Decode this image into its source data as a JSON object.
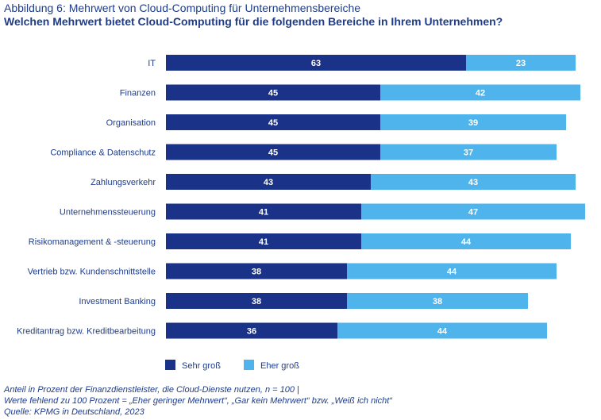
{
  "header": {
    "figure_label": "Abbildung 6: Mehrwert von Cloud-Computing für Unternehmensbereiche",
    "question": "Welchen Mehrwert bietet Cloud-Computing für die folgenden Bereiche in Ihrem Unternehmen?"
  },
  "chart_data": {
    "type": "bar",
    "orientation": "horizontal",
    "stacked": true,
    "categories": [
      "IT",
      "Finanzen",
      "Organisation",
      "Compliance & Datenschutz",
      "Zahlungsverkehr",
      "Unternehmenssteuerung",
      "Risikomanagement & -steuerung",
      "Vertrieb bzw. Kundenschnittstelle",
      "Investment Banking",
      "Kreditantrag bzw. Kreditbearbeitung"
    ],
    "series": [
      {
        "name": "Sehr groß",
        "color": "#1a3287",
        "values": [
          63,
          45,
          45,
          45,
          43,
          41,
          41,
          38,
          38,
          36
        ]
      },
      {
        "name": "Eher groß",
        "color": "#4fb4ec",
        "values": [
          23,
          42,
          39,
          37,
          43,
          47,
          44,
          44,
          38,
          44
        ]
      }
    ],
    "xlim": [
      0,
      88
    ],
    "grid": false,
    "legend_position": "bottom-left"
  },
  "footer": {
    "line1": "Anteil in Prozent der Finanzdienstleister, die Cloud-Dienste nutzen, n = 100 |",
    "line2": "Werte fehlend zu 100 Prozent = „Eher geringer Mehrwert“, „Gar kein Mehrwert“ bzw. „Weiß ich nicht“",
    "line3": "Quelle: KPMG in Deutschland, 2023"
  }
}
